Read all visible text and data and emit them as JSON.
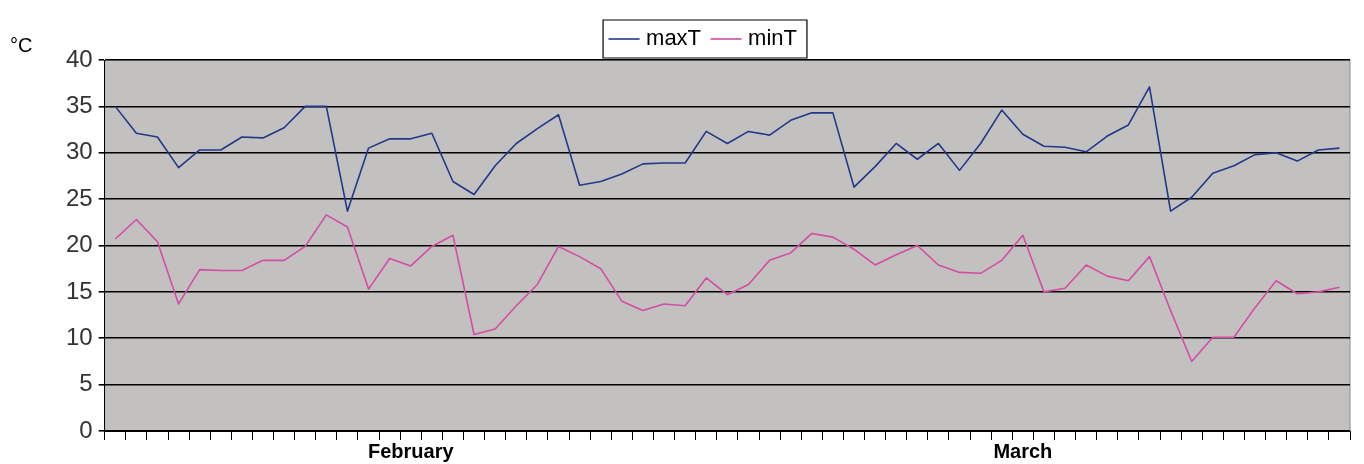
{
  "chart_data": {
    "type": "line",
    "ylabel": "°C",
    "categories": [
      null,
      null,
      null,
      null,
      null,
      null,
      null,
      null,
      null,
      null,
      null,
      null,
      null,
      null,
      "February",
      null,
      null,
      null,
      null,
      null,
      null,
      null,
      null,
      null,
      null,
      null,
      null,
      null,
      null,
      null,
      null,
      null,
      null,
      null,
      null,
      null,
      null,
      null,
      null,
      null,
      null,
      null,
      null,
      "March",
      null,
      null,
      null,
      null,
      null,
      null,
      null,
      null,
      null,
      null,
      null,
      null,
      null,
      null,
      null
    ],
    "series": [
      {
        "name": "maxT",
        "color": "#22388a",
        "values": [
          35.0,
          32.1,
          31.7,
          28.4,
          30.3,
          30.3,
          31.7,
          31.6,
          32.7,
          35.0,
          35.0,
          23.7,
          30.5,
          31.5,
          31.5,
          32.1,
          26.9,
          25.5,
          28.6,
          31.0,
          32.6,
          34.1,
          26.5,
          26.9,
          27.7,
          28.8,
          28.9,
          28.9,
          32.3,
          31.0,
          32.3,
          31.9,
          33.5,
          34.3,
          34.3,
          26.3,
          28.5,
          31.0,
          29.3,
          31.0,
          28.1,
          31.0,
          34.6,
          32.0,
          30.7,
          30.6,
          30.1,
          31.8,
          33.0,
          37.1,
          23.7,
          25.2,
          27.8,
          28.6,
          29.8,
          30.0,
          29.1,
          30.3,
          30.5
        ]
      },
      {
        "name": "minT",
        "color": "#d44ca6",
        "values": [
          20.7,
          22.8,
          20.4,
          13.7,
          17.4,
          17.3,
          17.3,
          18.4,
          18.4,
          19.9,
          23.3,
          22.0,
          15.3,
          18.6,
          17.8,
          19.9,
          21.1,
          10.4,
          11.0,
          13.5,
          15.8,
          19.9,
          18.8,
          17.5,
          14.0,
          13.0,
          13.7,
          13.5,
          16.5,
          14.7,
          15.8,
          18.4,
          19.2,
          21.3,
          20.9,
          19.6,
          17.9,
          19.0,
          20.0,
          17.9,
          17.1,
          17.0,
          18.4,
          21.1,
          15.0,
          15.4,
          17.9,
          16.7,
          16.2,
          18.8,
          13.0,
          7.5,
          10.1,
          10.1,
          13.3,
          16.2,
          14.8,
          15.0,
          15.5
        ]
      }
    ],
    "ylim": [
      0,
      40
    ],
    "yticks": [
      0,
      5,
      10,
      15,
      20,
      25,
      30,
      35,
      40
    ],
    "grid": "y",
    "legend": "top",
    "marker": "none",
    "line_style": "solid"
  }
}
